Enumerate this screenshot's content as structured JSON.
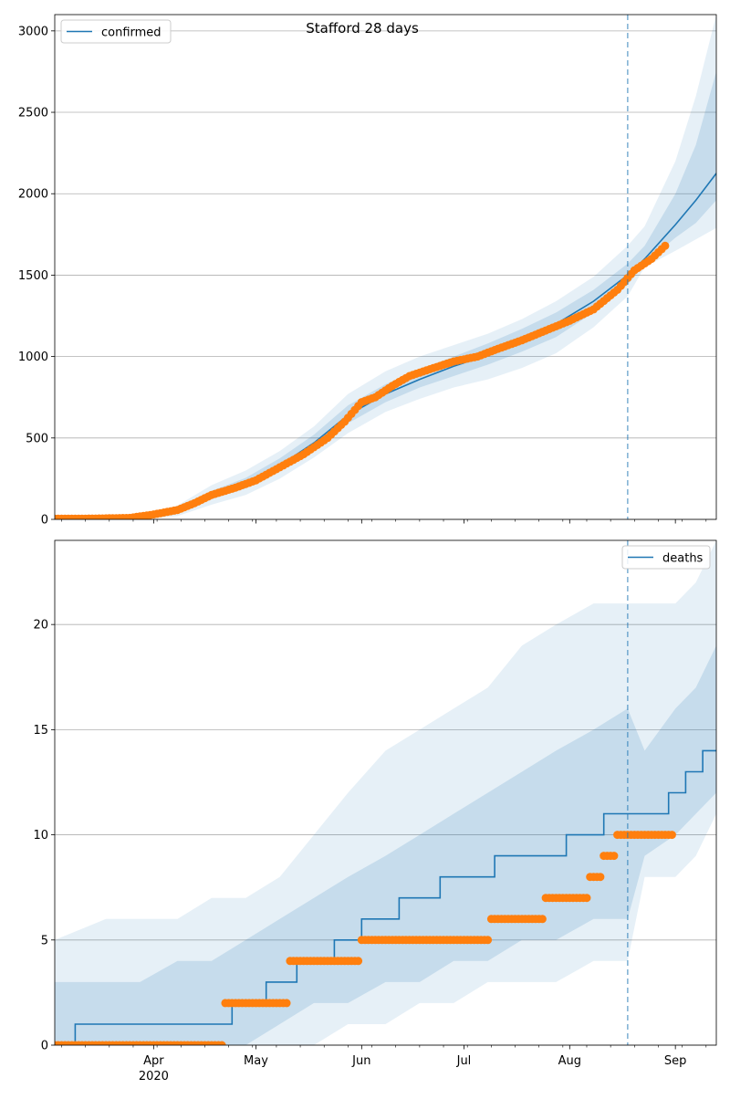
{
  "chart_data": [
    {
      "type": "line",
      "title": "Stafford 28 days",
      "legend": {
        "label": "confirmed",
        "position": "top-left"
      },
      "grid": "horizontal",
      "ylim": [
        0,
        3100
      ],
      "yticks": [
        0,
        500,
        1000,
        1500,
        2000,
        2500,
        3000
      ],
      "xlim": [
        "2020-03-03",
        "2020-09-13"
      ],
      "xticks": [
        "Apr",
        "May",
        "Jun",
        "Jul",
        "Aug",
        "Sep"
      ],
      "xtick_sublabel": "2020",
      "forecast_start": "2020-08-18",
      "series": [
        {
          "name": "confirmed",
          "kind": "model-line",
          "x": [
            "2020-03-03",
            "2020-03-18",
            "2020-03-28",
            "2020-04-08",
            "2020-04-18",
            "2020-04-28",
            "2020-05-08",
            "2020-05-18",
            "2020-05-28",
            "2020-06-08",
            "2020-06-18",
            "2020-06-28",
            "2020-07-08",
            "2020-07-18",
            "2020-07-28",
            "2020-08-08",
            "2020-08-18",
            "2020-08-23",
            "2020-09-01",
            "2020-09-07",
            "2020-09-13"
          ],
          "values": [
            0,
            2,
            8,
            55,
            150,
            220,
            330,
            470,
            640,
            770,
            860,
            940,
            1010,
            1100,
            1200,
            1340,
            1500,
            1600,
            1810,
            1960,
            2125
          ]
        },
        {
          "name": "observed",
          "kind": "points",
          "x": [
            "2020-03-03",
            "2020-03-15",
            "2020-03-25",
            "2020-04-01",
            "2020-04-08",
            "2020-04-13",
            "2020-04-18",
            "2020-04-25",
            "2020-05-01",
            "2020-05-08",
            "2020-05-15",
            "2020-05-22",
            "2020-05-27",
            "2020-06-01",
            "2020-06-05",
            "2020-06-10",
            "2020-06-15",
            "2020-06-20",
            "2020-06-28",
            "2020-07-05",
            "2020-07-10",
            "2020-07-18",
            "2020-07-25",
            "2020-08-01",
            "2020-08-08",
            "2020-08-15",
            "2020-08-20",
            "2020-08-25",
            "2020-08-29"
          ],
          "values": [
            4,
            5,
            9,
            30,
            58,
            100,
            150,
            195,
            240,
            320,
            400,
            500,
            600,
            720,
            750,
            820,
            880,
            915,
            970,
            1000,
            1040,
            1100,
            1160,
            1220,
            1290,
            1410,
            1530,
            1600,
            1680
          ]
        }
      ],
      "bands": {
        "x": [
          "2020-03-03",
          "2020-03-18",
          "2020-03-28",
          "2020-04-08",
          "2020-04-18",
          "2020-04-28",
          "2020-05-08",
          "2020-05-18",
          "2020-05-28",
          "2020-06-08",
          "2020-06-18",
          "2020-06-28",
          "2020-07-08",
          "2020-07-18",
          "2020-07-28",
          "2020-08-08",
          "2020-08-18",
          "2020-08-23",
          "2020-09-01",
          "2020-09-07",
          "2020-09-13"
        ],
        "outer_low": [
          0,
          0,
          0,
          20,
          90,
          150,
          250,
          380,
          530,
          660,
          740,
          810,
          860,
          930,
          1020,
          1180,
          1370,
          1550,
          1650,
          1720,
          1790
        ],
        "outer_high": [
          0,
          6,
          22,
          85,
          210,
          300,
          420,
          570,
          770,
          910,
          1000,
          1070,
          1140,
          1230,
          1340,
          1490,
          1680,
          1800,
          2200,
          2600,
          3100
        ],
        "inner_low": [
          0,
          1,
          4,
          40,
          125,
          190,
          295,
          430,
          590,
          720,
          810,
          880,
          950,
          1030,
          1120,
          1270,
          1440,
          1570,
          1730,
          1820,
          1960
        ],
        "inner_high": [
          0,
          4,
          14,
          70,
          175,
          255,
          375,
          520,
          700,
          830,
          920,
          1000,
          1080,
          1170,
          1270,
          1410,
          1570,
          1680,
          2000,
          2300,
          2750
        ]
      }
    },
    {
      "type": "line",
      "legend": {
        "label": "deaths",
        "position": "top-right"
      },
      "grid": "horizontal",
      "ylim": [
        0,
        24
      ],
      "yticks": [
        0,
        5,
        10,
        15,
        20
      ],
      "xlim": [
        "2020-03-03",
        "2020-09-13"
      ],
      "xticks": [
        "Apr",
        "May",
        "Jun",
        "Jul",
        "Aug",
        "Sep"
      ],
      "xtick_sublabel": "2020",
      "forecast_start": "2020-08-18",
      "series": [
        {
          "name": "deaths",
          "kind": "model-step",
          "x": [
            "2020-03-03",
            "2020-03-09",
            "2020-04-20",
            "2020-04-24",
            "2020-05-04",
            "2020-05-13",
            "2020-05-24",
            "2020-06-01",
            "2020-06-12",
            "2020-06-24",
            "2020-07-10",
            "2020-07-31",
            "2020-08-11",
            "2020-08-21",
            "2020-08-30",
            "2020-09-04",
            "2020-09-09",
            "2020-09-13"
          ],
          "values": [
            0,
            1,
            1,
            2,
            3,
            4,
            5,
            6,
            7,
            8,
            9,
            10,
            11,
            11,
            12,
            13,
            14,
            14
          ]
        },
        {
          "name": "observed",
          "kind": "points",
          "segments": [
            {
              "x": [
                "2020-03-03",
                "2020-04-21"
              ],
              "value": 0
            },
            {
              "x": [
                "2020-04-22",
                "2020-05-10"
              ],
              "value": 2
            },
            {
              "x": [
                "2020-05-11",
                "2020-05-31"
              ],
              "value": 4
            },
            {
              "x": [
                "2020-06-01",
                "2020-07-08"
              ],
              "value": 5
            },
            {
              "x": [
                "2020-07-09",
                "2020-07-24"
              ],
              "value": 6
            },
            {
              "x": [
                "2020-07-25",
                "2020-08-06"
              ],
              "value": 7
            },
            {
              "x": [
                "2020-08-07",
                "2020-08-10"
              ],
              "value": 8
            },
            {
              "x": [
                "2020-08-11",
                "2020-08-14"
              ],
              "value": 9
            },
            {
              "x": [
                "2020-08-15",
                "2020-08-31"
              ],
              "value": 10
            }
          ]
        }
      ],
      "bands": {
        "x": [
          "2020-03-03",
          "2020-03-18",
          "2020-03-28",
          "2020-04-08",
          "2020-04-18",
          "2020-04-28",
          "2020-05-08",
          "2020-05-18",
          "2020-05-28",
          "2020-06-08",
          "2020-06-18",
          "2020-06-28",
          "2020-07-08",
          "2020-07-18",
          "2020-07-28",
          "2020-08-08",
          "2020-08-18",
          "2020-08-23",
          "2020-09-01",
          "2020-09-07",
          "2020-09-13"
        ],
        "outer_low": [
          0,
          0,
          0,
          0,
          0,
          0,
          0,
          0,
          1,
          1,
          2,
          2,
          3,
          3,
          3,
          4,
          4,
          8,
          8,
          9,
          11
        ],
        "outer_high": [
          5,
          6,
          6,
          6,
          7,
          7,
          8,
          10,
          12,
          14,
          15,
          16,
          17,
          19,
          20,
          21,
          21,
          21,
          21,
          22,
          24
        ],
        "inner_low": [
          0,
          0,
          0,
          0,
          0,
          0,
          1,
          2,
          2,
          3,
          3,
          4,
          4,
          5,
          5,
          6,
          6,
          9,
          10,
          11,
          12
        ],
        "inner_high": [
          3,
          3,
          3,
          4,
          4,
          5,
          6,
          7,
          8,
          9,
          10,
          11,
          12,
          13,
          14,
          15,
          16,
          14,
          16,
          17,
          19
        ]
      }
    }
  ]
}
